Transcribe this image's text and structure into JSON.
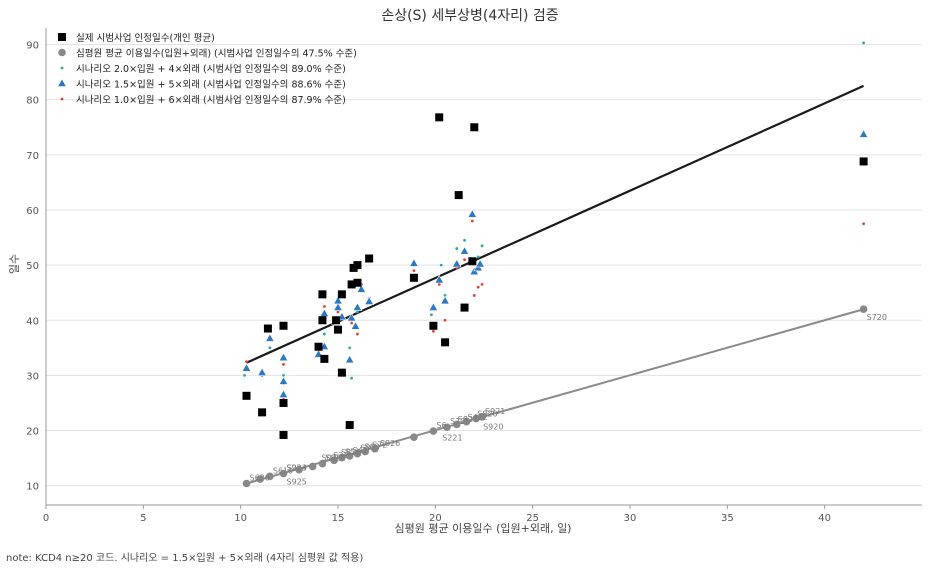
{
  "chart_data": {
    "type": "scatter",
    "title": "손상(S) 세부상병(4자리) 검증",
    "xlabel": "심평원 평균 이용일수 (입원+외래, 일)",
    "ylabel": "일수",
    "xlim": [
      0,
      45
    ],
    "ylim": [
      6.5,
      93
    ],
    "xticks": [
      "0",
      "5",
      "10",
      "15",
      "20",
      "25",
      "30",
      "35",
      "40"
    ],
    "yticks": [
      "10",
      "20",
      "30",
      "40",
      "50",
      "60",
      "70",
      "80",
      "90"
    ],
    "grid": "horizontal",
    "legend_position": "top-left",
    "colors": {
      "actual": "#000000",
      "hira": "#888888",
      "s2": "#2ca6a4",
      "s15": "#2b78c5",
      "s1": "#e0413b",
      "trend": "#1a1a1a",
      "hira_line": "#8a8a8a"
    },
    "series": [
      {
        "key": "actual",
        "name": "실제 시범사업 인정일수(개인 평균)",
        "points": [
          [
            10.3,
            26.3
          ],
          [
            11.1,
            23.3
          ],
          [
            11.4,
            38.5
          ],
          [
            12.2,
            39.0
          ],
          [
            12.2,
            25.0
          ],
          [
            12.2,
            19.2
          ],
          [
            14.0,
            35.2
          ],
          [
            14.2,
            44.7
          ],
          [
            14.2,
            40.0
          ],
          [
            14.3,
            33.0
          ],
          [
            14.9,
            40.0
          ],
          [
            15.0,
            38.3
          ],
          [
            15.2,
            44.7
          ],
          [
            15.2,
            30.5
          ],
          [
            15.6,
            21.0
          ],
          [
            15.7,
            46.5
          ],
          [
            15.8,
            49.5
          ],
          [
            16.0,
            46.8
          ],
          [
            16.0,
            50.0
          ],
          [
            16.6,
            51.2
          ],
          [
            18.9,
            47.7
          ],
          [
            19.9,
            39.0
          ],
          [
            20.2,
            76.8
          ],
          [
            20.5,
            36.0
          ],
          [
            21.2,
            62.7
          ],
          [
            21.5,
            42.3
          ],
          [
            21.9,
            50.7
          ],
          [
            22.0,
            75.0
          ],
          [
            42.0,
            68.8
          ]
        ]
      },
      {
        "key": "hira",
        "name": "심평원 평균 이용일수(입원+외래) (시범사업 인정일수의 47.5% 수준)",
        "points": [
          [
            10.3,
            10.4
          ],
          [
            11.0,
            11.2
          ],
          [
            11.5,
            11.7
          ],
          [
            12.2,
            12.2
          ],
          [
            13.0,
            12.9
          ],
          [
            13.7,
            13.5
          ],
          [
            14.2,
            14.0
          ],
          [
            14.8,
            14.6
          ],
          [
            15.2,
            15.1
          ],
          [
            15.6,
            15.4
          ],
          [
            16.0,
            15.8
          ],
          [
            16.4,
            16.2
          ],
          [
            16.9,
            16.7
          ],
          [
            18.9,
            18.8
          ],
          [
            19.9,
            19.9
          ],
          [
            20.6,
            20.6
          ],
          [
            21.1,
            21.1
          ],
          [
            21.6,
            21.6
          ],
          [
            22.1,
            22.2
          ],
          [
            22.4,
            22.5
          ],
          [
            42.0,
            42.0
          ]
        ],
        "labels": [
          [
            "S620",
            10.3,
            10.4
          ],
          [
            "S610",
            11.5,
            11.7
          ],
          [
            "S223",
            12.2,
            12.2
          ],
          [
            "S925",
            12.2,
            12.2
          ],
          [
            "S924",
            12.2,
            12.2
          ],
          [
            "S02",
            14.0,
            14.0
          ],
          [
            "S822",
            14.2,
            14.0
          ],
          [
            "S32",
            14.6,
            14.5
          ],
          [
            "S823",
            15.0,
            15.0
          ],
          [
            "S52",
            15.2,
            15.1
          ],
          [
            "S42",
            15.6,
            15.4
          ],
          [
            "S82",
            16.0,
            15.8
          ],
          [
            "S72",
            16.6,
            16.4
          ],
          [
            "S826",
            17.0,
            16.7
          ],
          [
            "S63",
            16.2,
            16.0
          ],
          [
            "S6",
            19.9,
            19.9
          ],
          [
            "S720",
            20.6,
            20.6
          ],
          [
            "S221",
            20.2,
            20.2
          ],
          [
            "S821",
            21.0,
            21.0
          ],
          [
            "S422",
            21.5,
            21.4
          ],
          [
            "S820",
            22.0,
            22.0
          ],
          [
            "S920",
            22.3,
            22.2
          ],
          [
            "S921",
            22.4,
            22.5
          ],
          [
            "S720",
            42.0,
            42.0
          ]
        ]
      },
      {
        "key": "s2",
        "name": "시나리오 2.0×입원 + 4×외래 (시범사업 인정일수의 89.0% 수준)",
        "points": [
          [
            10.2,
            30.0
          ],
          [
            10.3,
            31.5
          ],
          [
            11.1,
            30.5
          ],
          [
            11.5,
            35.0
          ],
          [
            12.2,
            30.0
          ],
          [
            12.2,
            33.5
          ],
          [
            14.0,
            34.5
          ],
          [
            14.3,
            37.5
          ],
          [
            14.9,
            42.0
          ],
          [
            15.0,
            43.5
          ],
          [
            15.2,
            41.0
          ],
          [
            15.6,
            35.0
          ],
          [
            15.7,
            29.5
          ],
          [
            16.0,
            41.5
          ],
          [
            16.2,
            45.5
          ],
          [
            16.5,
            43.0
          ],
          [
            18.9,
            50.5
          ],
          [
            19.8,
            41.0
          ],
          [
            20.3,
            50.0
          ],
          [
            20.5,
            44.5
          ],
          [
            21.1,
            53.0
          ],
          [
            21.5,
            54.5
          ],
          [
            21.9,
            59.5
          ],
          [
            22.2,
            51.5
          ],
          [
            22.4,
            53.5
          ],
          [
            42.0,
            90.3
          ]
        ]
      },
      {
        "key": "s15",
        "name": "시나리오 1.5×입원 + 5×외래 (시범사업 인정일수의 88.6% 수준)",
        "points": [
          [
            10.3,
            31.3
          ],
          [
            11.1,
            30.5
          ],
          [
            11.5,
            36.7
          ],
          [
            12.2,
            33.2
          ],
          [
            12.2,
            28.9
          ],
          [
            12.2,
            26.5
          ],
          [
            14.0,
            33.8
          ],
          [
            14.3,
            41.2
          ],
          [
            14.3,
            35.2
          ],
          [
            14.9,
            39.8
          ],
          [
            15.0,
            42.3
          ],
          [
            15.0,
            43.5
          ],
          [
            15.2,
            40.6
          ],
          [
            15.6,
            32.8
          ],
          [
            15.7,
            40.4
          ],
          [
            15.9,
            38.9
          ],
          [
            16.0,
            42.3
          ],
          [
            16.2,
            45.6
          ],
          [
            16.6,
            43.4
          ],
          [
            18.9,
            50.3
          ],
          [
            19.9,
            42.3
          ],
          [
            20.2,
            47.3
          ],
          [
            20.5,
            43.5
          ],
          [
            21.1,
            50.2
          ],
          [
            21.5,
            52.5
          ],
          [
            21.9,
            59.2
          ],
          [
            22.0,
            48.8
          ],
          [
            22.2,
            49.5
          ],
          [
            22.3,
            50.2
          ],
          [
            42.0,
            73.7
          ]
        ]
      },
      {
        "key": "s1",
        "name": "시나리오 1.0×입원 + 6×외래 (시범사업 인정일수의 87.9% 수준)",
        "points": [
          [
            10.3,
            32.5
          ],
          [
            11.1,
            30.0
          ],
          [
            11.5,
            37.0
          ],
          [
            12.2,
            32.0
          ],
          [
            12.2,
            28.5
          ],
          [
            12.2,
            26.0
          ],
          [
            14.0,
            34.5
          ],
          [
            14.3,
            42.5
          ],
          [
            14.3,
            35.5
          ],
          [
            14.9,
            40.5
          ],
          [
            15.0,
            41.5
          ],
          [
            15.2,
            44.5
          ],
          [
            15.6,
            32.5
          ],
          [
            15.7,
            39.5
          ],
          [
            16.0,
            37.5
          ],
          [
            16.2,
            46.5
          ],
          [
            16.6,
            44.0
          ],
          [
            18.9,
            49.0
          ],
          [
            19.9,
            38.0
          ],
          [
            20.2,
            46.5
          ],
          [
            20.5,
            40.0
          ],
          [
            21.1,
            49.5
          ],
          [
            21.5,
            51.0
          ],
          [
            21.9,
            58.0
          ],
          [
            22.0,
            44.5
          ],
          [
            22.2,
            46.0
          ],
          [
            22.4,
            46.5
          ],
          [
            42.0,
            57.5
          ]
        ]
      }
    ],
    "lines": [
      {
        "key": "trend",
        "x": [
          10.3,
          42.0
        ],
        "y": [
          32.3,
          82.5
        ]
      },
      {
        "key": "hira_line",
        "x": [
          10.3,
          42.0
        ],
        "y": [
          10.4,
          42.0
        ]
      }
    ]
  },
  "note": "note: KCD4 n≥20 코드. 시나리오 = 1.5×입원 + 5×외래 (4자리 심평원 값 적용)"
}
